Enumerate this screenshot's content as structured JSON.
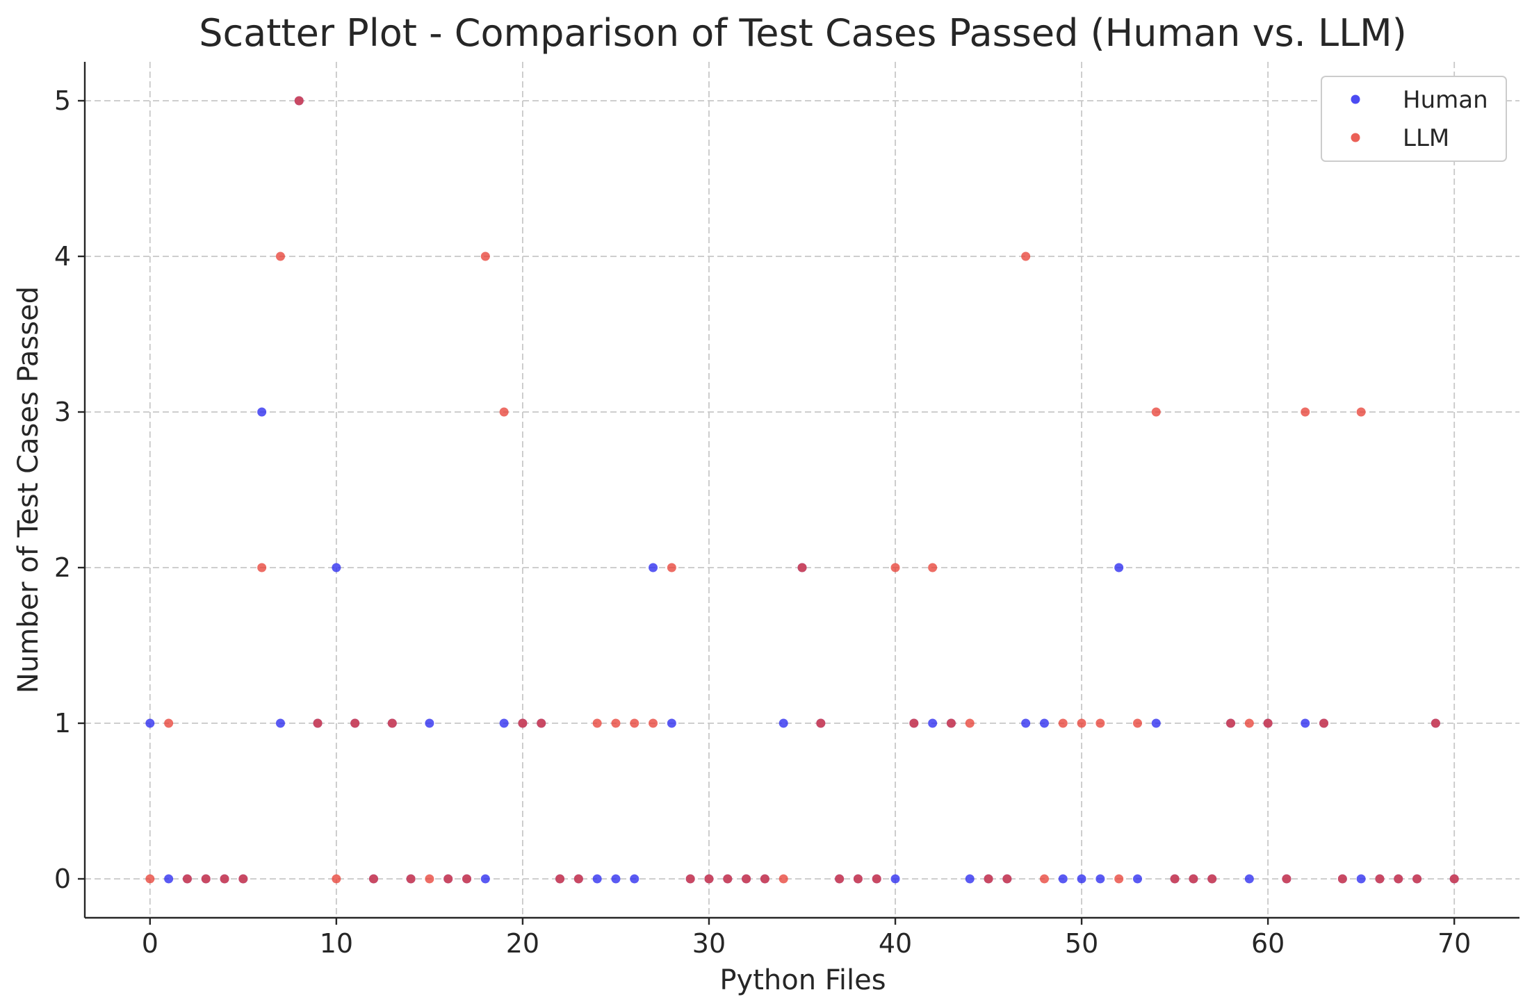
{
  "chart_data": {
    "type": "scatter",
    "title": "Scatter Plot - Comparison of Test Cases Passed (Human vs. LLM)",
    "xlabel": "Python Files",
    "ylabel": "Number of Test Cases Passed",
    "xlim": [
      -3.5,
      73.5
    ],
    "ylim": [
      -0.25,
      5.25
    ],
    "xticks": [
      0,
      10,
      20,
      30,
      40,
      50,
      60,
      70
    ],
    "yticks": [
      0,
      1,
      2,
      3,
      4,
      5
    ],
    "grid": true,
    "legend_position": "top-right",
    "x": [
      0,
      1,
      2,
      3,
      4,
      5,
      6,
      7,
      8,
      9,
      10,
      11,
      12,
      13,
      14,
      15,
      16,
      17,
      18,
      19,
      20,
      21,
      22,
      23,
      24,
      25,
      26,
      27,
      28,
      29,
      30,
      31,
      32,
      33,
      34,
      35,
      36,
      37,
      38,
      39,
      40,
      41,
      42,
      43,
      44,
      45,
      46,
      47,
      48,
      49,
      50,
      51,
      52,
      53,
      54,
      55,
      56,
      57,
      58,
      59,
      60,
      61,
      62,
      63,
      64,
      65,
      66,
      67,
      68,
      69,
      70
    ],
    "series": [
      {
        "name": "Human",
        "color": "#2b2bf0",
        "values": [
          1,
          0,
          0,
          0,
          0,
          0,
          3,
          1,
          5,
          1,
          2,
          1,
          0,
          1,
          0,
          1,
          0,
          0,
          0,
          1,
          1,
          1,
          0,
          0,
          0,
          0,
          0,
          2,
          1,
          0,
          0,
          0,
          0,
          0,
          1,
          2,
          1,
          0,
          0,
          0,
          0,
          1,
          1,
          1,
          0,
          0,
          0,
          1,
          1,
          0,
          0,
          0,
          2,
          0,
          1,
          0,
          0,
          0,
          1,
          0,
          1,
          0,
          1,
          1,
          0,
          0,
          0,
          0,
          0,
          1,
          0
        ]
      },
      {
        "name": "LLM",
        "color": "#e8443a",
        "values": [
          0,
          1,
          0,
          0,
          0,
          0,
          2,
          4,
          5,
          1,
          0,
          1,
          0,
          1,
          0,
          0,
          0,
          0,
          4,
          3,
          1,
          1,
          0,
          0,
          1,
          1,
          1,
          1,
          2,
          0,
          0,
          0,
          0,
          0,
          0,
          2,
          1,
          0,
          0,
          0,
          2,
          1,
          2,
          1,
          1,
          0,
          0,
          4,
          0,
          1,
          1,
          1,
          0,
          1,
          3,
          0,
          0,
          0,
          1,
          1,
          1,
          0,
          3,
          1,
          0,
          3,
          0,
          0,
          0,
          1,
          0
        ]
      }
    ]
  }
}
